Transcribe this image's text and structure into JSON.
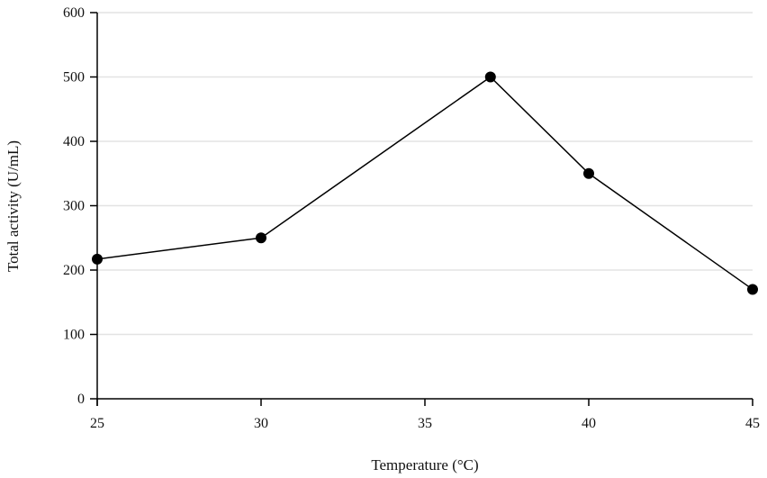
{
  "chart_data": {
    "type": "line",
    "title": "",
    "xlabel": "Temperature (°C)",
    "ylabel": "Total activity (U/mL)",
    "xlim": [
      25,
      45
    ],
    "ylim": [
      0,
      600
    ],
    "xticks": [
      25,
      30,
      35,
      40,
      45
    ],
    "yticks": [
      0,
      100,
      200,
      300,
      400,
      500,
      600
    ],
    "grid": "horizontal",
    "series": [
      {
        "x": [
          25,
          30,
          37,
          40,
          45
        ],
        "y": [
          217,
          250,
          500,
          350,
          170
        ],
        "color": "#000000",
        "marker": "circle"
      }
    ],
    "gridline_color": "#e3e3e3"
  }
}
